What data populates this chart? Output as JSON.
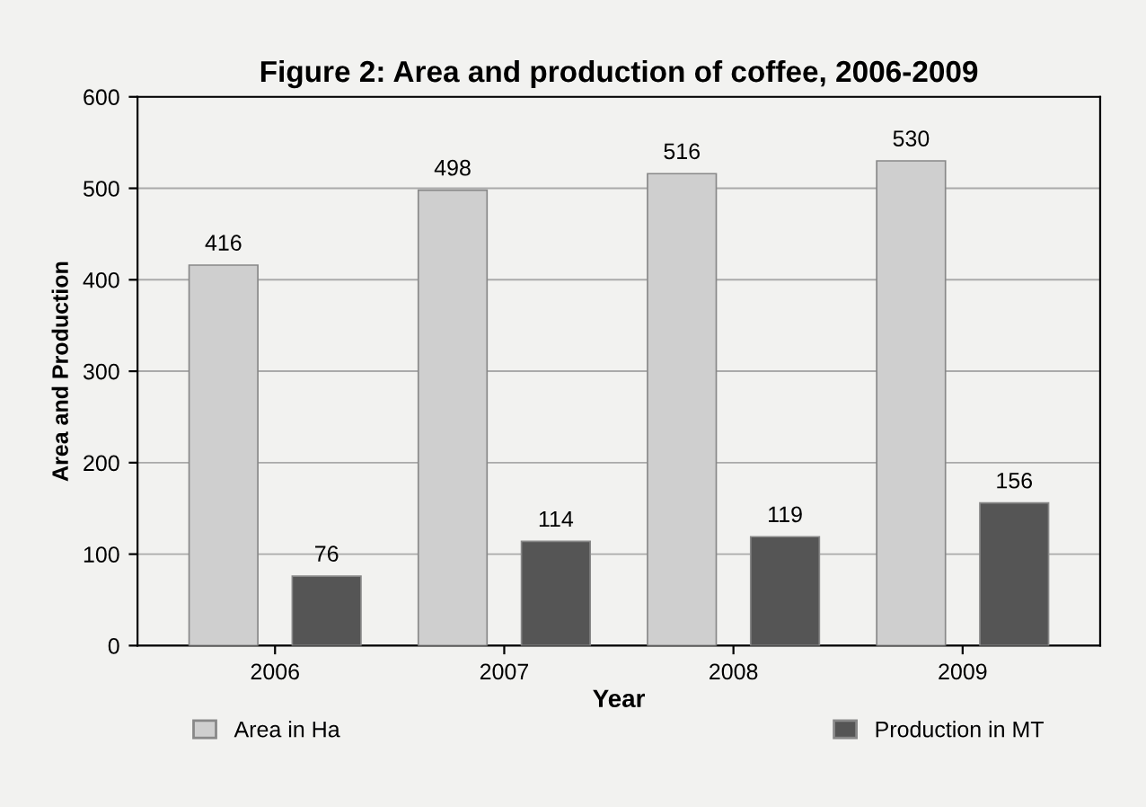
{
  "chart_data": {
    "type": "bar",
    "title": "Figure 2: Area and production of coffee, 2006-2009",
    "xlabel": "Year",
    "ylabel": "Area and Production",
    "categories": [
      "2006",
      "2007",
      "2008",
      "2009"
    ],
    "series": [
      {
        "name": "Area in Ha",
        "color": "#cfcfcf",
        "values": [
          416,
          498,
          516,
          530
        ]
      },
      {
        "name": "Production in MT",
        "color": "#555555",
        "values": [
          76,
          114,
          119,
          156
        ]
      }
    ],
    "ylim": [
      0,
      600
    ],
    "yticks": [
      0,
      100,
      200,
      300,
      400,
      500,
      600
    ],
    "grid": "y",
    "legend": "bottom",
    "data_labels": true
  }
}
